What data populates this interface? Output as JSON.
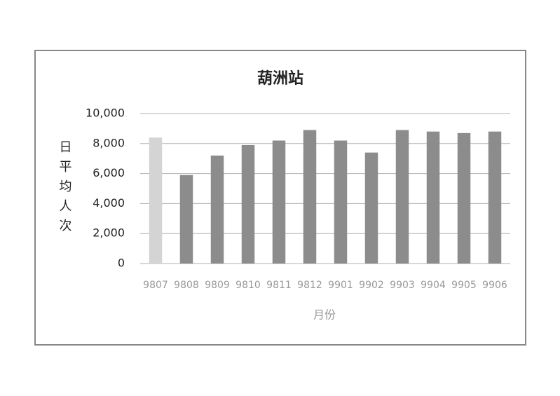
{
  "chart_data": {
    "type": "bar",
    "title": "葫洲站",
    "x_label": "月份",
    "y_label": "日平均人次",
    "categories": [
      "9807",
      "9808",
      "9809",
      "9810",
      "9811",
      "9812",
      "9901",
      "9902",
      "9903",
      "9904",
      "9905",
      "9906"
    ],
    "values": [
      8400,
      5900,
      7200,
      7900,
      8200,
      8900,
      8200,
      7400,
      8900,
      8800,
      8700,
      8800
    ],
    "colors": [
      "#d4d4d4",
      "#8c8c8c",
      "#8c8c8c",
      "#8c8c8c",
      "#8c8c8c",
      "#8c8c8c",
      "#8c8c8c",
      "#8c8c8c",
      "#8c8c8c",
      "#8c8c8c",
      "#8c8c8c",
      "#8c8c8c"
    ],
    "ylim": [
      0,
      10000
    ],
    "yticks": [
      0,
      {
        "value": 2000,
        "label": "2,000"
      },
      {
        "value": 4000,
        "label": "4,000"
      },
      {
        "value": 6000,
        "label": "6,000"
      },
      {
        "value": 8000,
        "label": "8,000"
      },
      {
        "value": 10000,
        "label": "10,000"
      }
    ],
    "grid": true
  }
}
